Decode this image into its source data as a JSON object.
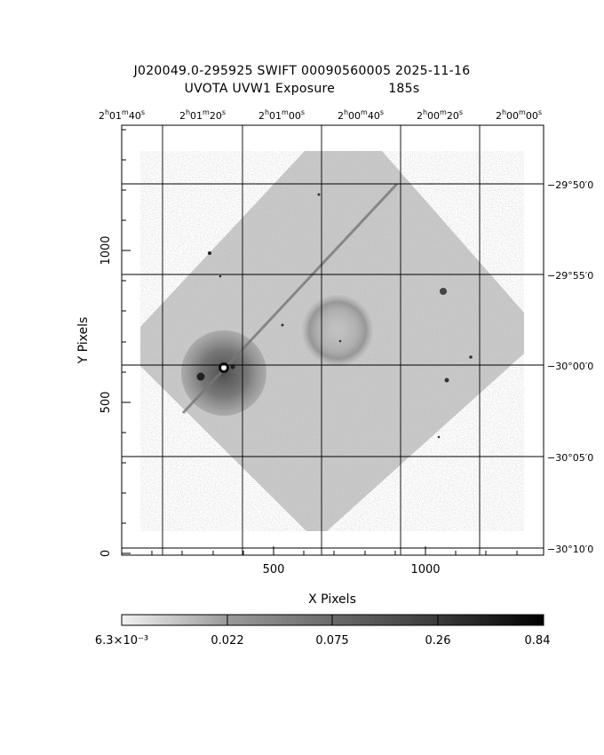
{
  "title": {
    "line1": "J020049.0-295925 SWIFT 00090560005 2025-11-16",
    "line2_left": "UVOTA UVW1 Exposure",
    "line2_right": "185s"
  },
  "axes": {
    "xlabel": "X Pixels",
    "ylabel": "Y Pixels",
    "x_ticks": [
      "500",
      "1000"
    ],
    "y_ticks": [
      "0",
      "500",
      "1000"
    ],
    "ra_ticks": [
      {
        "h": "2",
        "m": "01",
        "s": "40"
      },
      {
        "h": "2",
        "m": "01",
        "s": "20"
      },
      {
        "h": "2",
        "m": "01",
        "s": "00"
      },
      {
        "h": "2",
        "m": "00",
        "s": "40"
      },
      {
        "h": "2",
        "m": "00",
        "s": "20"
      },
      {
        "h": "2",
        "m": "00",
        "s": "00"
      }
    ],
    "dec_ticks": [
      "−29°50′0",
      "−29°55′0",
      "−30°00′0",
      "−30°05′0",
      "−30°10′0"
    ]
  },
  "colorbar": {
    "labels": [
      "6.3×10⁻³",
      "0.022",
      "0.075",
      "0.26",
      "0.84"
    ]
  }
}
